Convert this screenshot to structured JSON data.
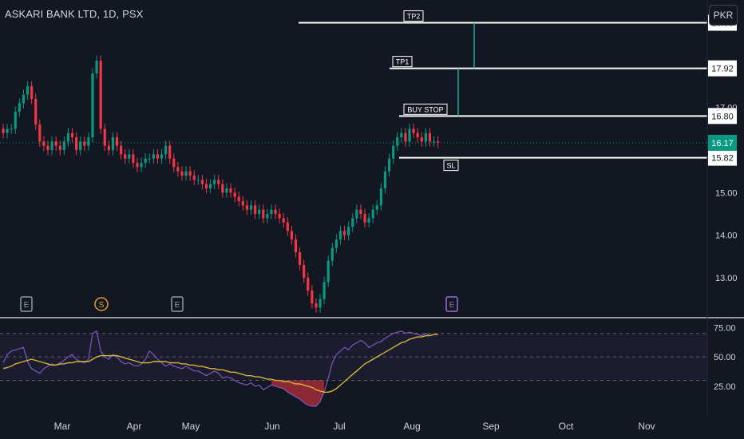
{
  "header": {
    "title": "ASKARI BANK LTD, 1D, PSX",
    "currency_button": "PKR"
  },
  "colors": {
    "background": "#131722",
    "up": "#089981",
    "down": "#f23645",
    "rsi": "#7e57c2",
    "rsi_ma": "#d4b53b",
    "text": "#d1d4dc",
    "grid_dash": "#787b86"
  },
  "chart_data": [
    {
      "type": "candlestick",
      "title": "ASKARI BANK LTD, 1D, PSX",
      "y_axis_labels": [
        "13.00",
        "14.00",
        "15.00",
        "17.00"
      ],
      "x_axis_labels": [
        "Mar",
        "Apr",
        "May",
        "Jun",
        "Jul",
        "Aug",
        "Sep",
        "Oct",
        "Nov"
      ],
      "ylim": [
        12.1,
        19.3
      ],
      "current_price": "16.17",
      "levels": [
        {
          "label": "TP2",
          "value": 18.99,
          "value_label": "18.99"
        },
        {
          "label": "TP1",
          "value": 17.92,
          "value_label": "17.92"
        },
        {
          "label": "BUY STOP",
          "value": 16.8,
          "value_label": "16.80"
        },
        {
          "label": "SL",
          "value": 15.82,
          "value_label": "15.82"
        }
      ],
      "event_markers": [
        {
          "label": "E",
          "color": "#9598a1"
        },
        {
          "label": "S",
          "color": "#e0a030"
        },
        {
          "label": "E",
          "color": "#9598a1"
        },
        {
          "label": "E",
          "color": "#9c6bd6"
        }
      ],
      "series": [
        {
          "name": "close",
          "values": [
            16.4,
            16.5,
            16.5,
            16.9,
            17.1,
            17.3,
            17.5,
            17.2,
            16.6,
            16.2,
            16.1,
            16.0,
            16.2,
            16.1,
            16.0,
            16.2,
            16.4,
            16.3,
            16.0,
            16.2,
            16.1,
            16.3,
            17.8,
            18.1,
            16.5,
            16.1,
            16.0,
            16.3,
            16.1,
            15.9,
            15.8,
            15.9,
            15.7,
            15.6,
            15.7,
            15.8,
            15.8,
            15.9,
            15.8,
            15.9,
            16.1,
            15.8,
            15.6,
            15.5,
            15.4,
            15.5,
            15.4,
            15.3,
            15.3,
            15.2,
            15.1,
            15.2,
            15.3,
            15.2,
            15.0,
            15.1,
            15.0,
            14.9,
            14.8,
            14.7,
            14.6,
            14.7,
            14.5,
            14.6,
            14.4,
            14.5,
            14.6,
            14.5,
            14.4,
            14.3,
            14.1,
            13.9,
            13.6,
            13.3,
            13.0,
            12.7,
            12.4,
            12.3,
            12.5,
            12.9,
            13.4,
            13.7,
            13.9,
            14.1,
            14.0,
            14.2,
            14.4,
            14.6,
            14.5,
            14.3,
            14.4,
            14.6,
            14.7,
            15.1,
            15.5,
            15.8,
            16.1,
            16.3,
            16.4,
            16.2,
            16.5,
            16.4,
            16.3,
            16.2,
            16.4,
            16.2,
            16.2,
            16.17
          ]
        }
      ]
    },
    {
      "type": "line",
      "title": "",
      "y_axis_labels": [
        "75.00",
        "50.00",
        "25.00"
      ],
      "ylim": [
        10,
        82
      ],
      "series": [
        {
          "name": "",
          "values": [
            45,
            52,
            55,
            56,
            57,
            58,
            46,
            40,
            38,
            36,
            40,
            42,
            44,
            43,
            45,
            47,
            50,
            52,
            48,
            46,
            45,
            48,
            70,
            72,
            55,
            50,
            48,
            52,
            50,
            46,
            44,
            45,
            43,
            42,
            44,
            48,
            55,
            52,
            48,
            45,
            42,
            44,
            42,
            41,
            40,
            42,
            40,
            38,
            38,
            36,
            34,
            36,
            38,
            36,
            32,
            33,
            32,
            30,
            28,
            27,
            26,
            28,
            25,
            26,
            22,
            24,
            26,
            25,
            24,
            23,
            20,
            18,
            16,
            14,
            11,
            9,
            8,
            8,
            12,
            20,
            32,
            45,
            52,
            55,
            58,
            56,
            60,
            62,
            64,
            62,
            58,
            60,
            62,
            63,
            66,
            68,
            70,
            71,
            72,
            70,
            71,
            70,
            69,
            68,
            70,
            68,
            69,
            69
          ]
        },
        {
          "name": "",
          "values": [
            40,
            41,
            42,
            44,
            45,
            46,
            47,
            48,
            47,
            46,
            45,
            44,
            43,
            43,
            44,
            44,
            45,
            45,
            46,
            46,
            46,
            46,
            48,
            50,
            51,
            51,
            51,
            51,
            51,
            50,
            49,
            48,
            47,
            46,
            45,
            45,
            45,
            46,
            46,
            46,
            46,
            45,
            45,
            45,
            44,
            44,
            43,
            43,
            42,
            42,
            41,
            40,
            40,
            39,
            39,
            38,
            37,
            37,
            36,
            35,
            34,
            34,
            33,
            33,
            32,
            31,
            31,
            30,
            30,
            29,
            29,
            28,
            27,
            27,
            26,
            25,
            24,
            22,
            21,
            20,
            20,
            21,
            23,
            26,
            29,
            32,
            35,
            38,
            41,
            44,
            46,
            48,
            50,
            52,
            54,
            56,
            58,
            60,
            62,
            63,
            65,
            66,
            67,
            67,
            68,
            68,
            69,
            69
          ]
        }
      ]
    }
  ]
}
